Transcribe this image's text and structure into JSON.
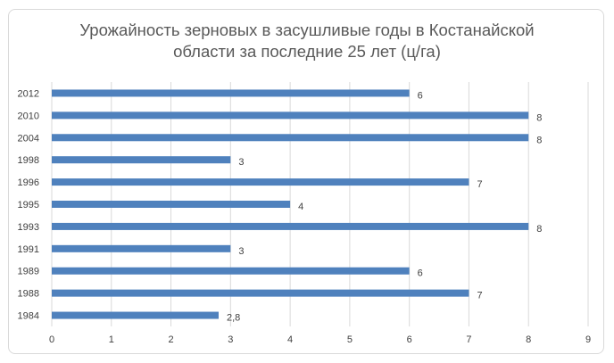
{
  "chart_data": {
    "type": "bar",
    "orientation": "horizontal",
    "title": [
      "Урожайность зерновых в засушливые годы в Костанайской",
      "области за последние 25 лет (ц/га)"
    ],
    "categories": [
      "2012",
      "2010",
      "2004",
      "1998",
      "1996",
      "1995",
      "1993",
      "1991",
      "1989",
      "1988",
      "1984"
    ],
    "values": [
      6,
      8,
      8,
      3,
      7,
      4,
      8,
      3,
      6,
      7,
      2.8
    ],
    "value_labels": [
      "6",
      "8",
      "8",
      "3",
      "7",
      "4",
      "8",
      "3",
      "6",
      "7",
      "2,8"
    ],
    "x_ticks": [
      "0",
      "1",
      "2",
      "3",
      "4",
      "5",
      "6",
      "7",
      "8",
      "9"
    ],
    "xlim": [
      0,
      9
    ],
    "grid": "vertical",
    "legend": "none",
    "bar_color": "#4f81bd",
    "grid_color": "#d9d9d9"
  }
}
